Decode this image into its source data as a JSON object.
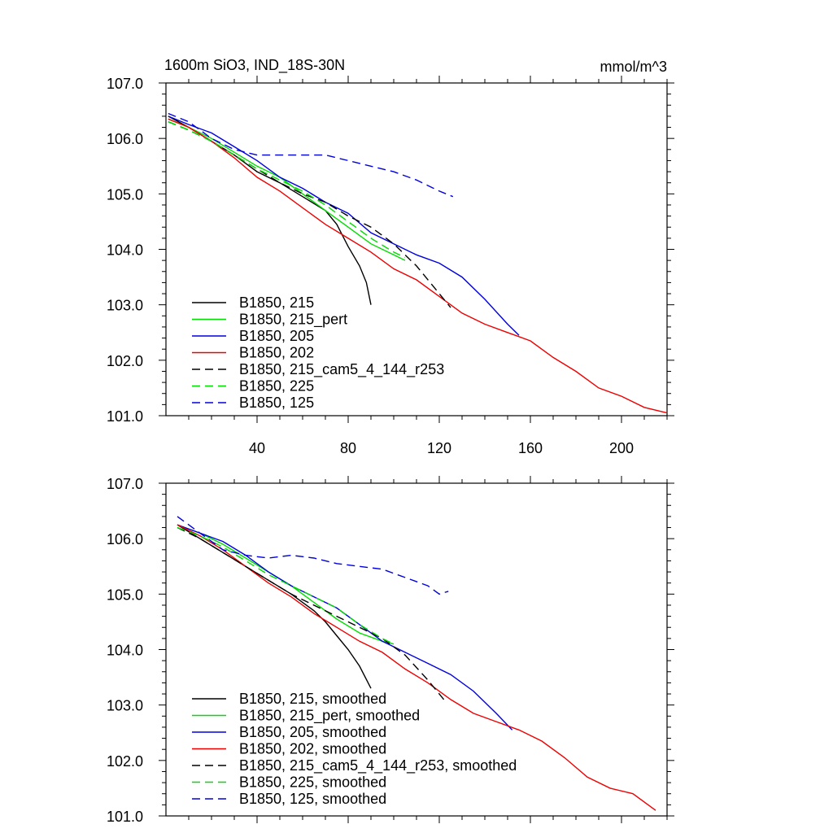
{
  "figure": {
    "title": "1600m SiO3, IND_18S-30N",
    "units": "mmol/m^3"
  },
  "chart_data": [
    {
      "type": "line",
      "title": "1600m SiO3, IND_18S-30N",
      "units_label": "mmol/m^3",
      "xlim": [
        0,
        220
      ],
      "ylim": [
        101.0,
        107.0
      ],
      "xticks": [
        40,
        80,
        120,
        160,
        200
      ],
      "xtick_labels": [
        "40",
        "80",
        "120",
        "160",
        "200"
      ],
      "yticks": [
        101.0,
        102.0,
        103.0,
        104.0,
        105.0,
        106.0,
        107.0
      ],
      "ytick_labels": [
        "101.0",
        "102.0",
        "103.0",
        "104.0",
        "105.0",
        "106.0",
        "107.0"
      ],
      "grid": false,
      "legend_position": "bottom-left",
      "series": [
        {
          "name": "B1850, 215",
          "color": "#000000",
          "dash": "solid",
          "x": [
            1,
            10,
            20,
            30,
            40,
            50,
            60,
            70,
            75,
            80,
            85,
            88,
            90
          ],
          "y": [
            106.4,
            106.2,
            105.95,
            105.7,
            105.4,
            105.2,
            104.95,
            104.7,
            104.45,
            104.05,
            103.7,
            103.4,
            103.0
          ]
        },
        {
          "name": "B1850, 215_pert",
          "color": "#00dd00",
          "dash": "solid",
          "x": [
            1,
            10,
            20,
            30,
            40,
            50,
            60,
            70,
            80,
            90,
            100,
            105
          ],
          "y": [
            106.35,
            106.2,
            106.0,
            105.75,
            105.5,
            105.3,
            105.0,
            104.7,
            104.4,
            104.1,
            103.9,
            103.8
          ]
        },
        {
          "name": "B1850, 205",
          "color": "#0000dd",
          "dash": "solid",
          "x": [
            1,
            10,
            20,
            30,
            40,
            50,
            60,
            70,
            80,
            90,
            100,
            110,
            120,
            130,
            140,
            150,
            155
          ],
          "y": [
            106.4,
            106.25,
            106.1,
            105.85,
            105.6,
            105.3,
            105.1,
            104.85,
            104.65,
            104.3,
            104.1,
            103.9,
            103.75,
            103.5,
            103.1,
            102.65,
            102.45
          ]
        },
        {
          "name": "B1850, 202",
          "color": "#ee0000",
          "dash": "solid",
          "x": [
            1,
            10,
            20,
            30,
            40,
            50,
            60,
            70,
            80,
            90,
            100,
            110,
            120,
            130,
            140,
            150,
            160,
            170,
            180,
            190,
            200,
            210,
            220
          ],
          "y": [
            106.35,
            106.2,
            105.95,
            105.65,
            105.3,
            105.05,
            104.75,
            104.45,
            104.2,
            103.95,
            103.65,
            103.45,
            103.15,
            102.85,
            102.65,
            102.5,
            102.35,
            102.05,
            101.8,
            101.5,
            101.35,
            101.15,
            101.05
          ]
        },
        {
          "name": "B1850, 215_cam5_4_144_r253",
          "color": "#000000",
          "dash": "dashed",
          "x": [
            1,
            10,
            20,
            30,
            40,
            50,
            60,
            70,
            80,
            90,
            100,
            110,
            120,
            125
          ],
          "y": [
            106.3,
            106.15,
            105.95,
            105.7,
            105.45,
            105.2,
            105.0,
            104.85,
            104.6,
            104.4,
            104.1,
            103.7,
            103.2,
            102.95
          ]
        },
        {
          "name": "B1850, 225",
          "color": "#00dd00",
          "dash": "dashed",
          "x": [
            1,
            10,
            20,
            30,
            40,
            50,
            60,
            70,
            80,
            90,
            100,
            105
          ],
          "y": [
            106.3,
            106.15,
            105.95,
            105.7,
            105.45,
            105.25,
            105.05,
            104.8,
            104.5,
            104.2,
            103.95,
            103.85
          ]
        },
        {
          "name": "B1850, 125",
          "color": "#0000dd",
          "dash": "dashed",
          "x": [
            1,
            10,
            20,
            30,
            40,
            50,
            60,
            70,
            80,
            90,
            100,
            110,
            120,
            126
          ],
          "y": [
            106.45,
            106.3,
            106.0,
            105.8,
            105.7,
            105.7,
            105.7,
            105.7,
            105.6,
            105.5,
            105.4,
            105.25,
            105.05,
            104.95
          ]
        }
      ]
    },
    {
      "type": "line",
      "xlim": [
        0,
        220
      ],
      "ylim": [
        101.0,
        107.0
      ],
      "xticks": [
        40,
        80,
        120,
        160,
        200
      ],
      "yticks": [
        101.0,
        102.0,
        103.0,
        104.0,
        105.0,
        106.0,
        107.0
      ],
      "ytick_labels": [
        "101.0",
        "102.0",
        "103.0",
        "104.0",
        "105.0",
        "106.0",
        "107.0"
      ],
      "grid": false,
      "legend_position": "bottom-left",
      "series": [
        {
          "name": "B1850, 215, smoothed",
          "color": "#000000",
          "dash": "solid",
          "x": [
            5,
            15,
            25,
            35,
            45,
            55,
            65,
            70,
            75,
            80,
            85,
            90
          ],
          "y": [
            106.25,
            106.0,
            105.75,
            105.5,
            105.25,
            105.0,
            104.7,
            104.5,
            104.25,
            104.0,
            103.7,
            103.3
          ]
        },
        {
          "name": "B1850, 215_pert, smoothed",
          "color": "#00dd00",
          "dash": "solid",
          "x": [
            5,
            15,
            25,
            35,
            45,
            55,
            65,
            75,
            85,
            95,
            100
          ],
          "y": [
            106.25,
            106.1,
            105.9,
            105.65,
            105.4,
            105.15,
            104.85,
            104.55,
            104.3,
            104.15,
            104.1
          ]
        },
        {
          "name": "B1850, 205, smoothed",
          "color": "#0000dd",
          "dash": "solid",
          "x": [
            5,
            15,
            25,
            35,
            45,
            55,
            65,
            75,
            85,
            95,
            105,
            115,
            125,
            135,
            145,
            152
          ],
          "y": [
            106.25,
            106.1,
            105.95,
            105.7,
            105.4,
            105.15,
            104.95,
            104.75,
            104.45,
            104.15,
            103.95,
            103.75,
            103.55,
            103.25,
            102.85,
            102.55
          ]
        },
        {
          "name": "B1850, 202, smoothed",
          "color": "#ee0000",
          "dash": "solid",
          "x": [
            5,
            15,
            25,
            35,
            45,
            55,
            65,
            75,
            85,
            95,
            105,
            115,
            125,
            135,
            145,
            155,
            165,
            175,
            185,
            195,
            205,
            215
          ],
          "y": [
            106.25,
            106.05,
            105.8,
            105.5,
            105.2,
            104.95,
            104.65,
            104.4,
            104.15,
            103.95,
            103.65,
            103.4,
            103.1,
            102.85,
            102.7,
            102.55,
            102.35,
            102.05,
            101.7,
            101.5,
            101.4,
            101.1
          ]
        },
        {
          "name": "B1850, 215_cam5_4_144_r253, smoothed",
          "color": "#000000",
          "dash": "dashed",
          "x": [
            5,
            15,
            25,
            35,
            45,
            55,
            65,
            75,
            85,
            95,
            105,
            115,
            122
          ],
          "y": [
            106.2,
            106.0,
            105.75,
            105.5,
            105.25,
            105.0,
            104.8,
            104.6,
            104.4,
            104.2,
            103.9,
            103.45,
            103.1
          ]
        },
        {
          "name": "B1850, 225, smoothed",
          "color": "#00dd00",
          "dash": "dashed",
          "x": [
            5,
            15,
            25,
            35,
            45,
            55,
            65,
            75,
            85,
            95,
            100
          ],
          "y": [
            106.2,
            106.05,
            105.85,
            105.6,
            105.35,
            105.15,
            104.95,
            104.75,
            104.45,
            104.2,
            104.1
          ]
        },
        {
          "name": "B1850, 125, smoothed",
          "color": "#0000dd",
          "dash": "dashed",
          "x": [
            5,
            15,
            25,
            35,
            45,
            55,
            65,
            75,
            85,
            95,
            105,
            115,
            120,
            124
          ],
          "y": [
            106.4,
            106.1,
            105.8,
            105.7,
            105.65,
            105.7,
            105.65,
            105.55,
            105.5,
            105.45,
            105.3,
            105.15,
            105.0,
            105.05
          ]
        }
      ]
    }
  ]
}
